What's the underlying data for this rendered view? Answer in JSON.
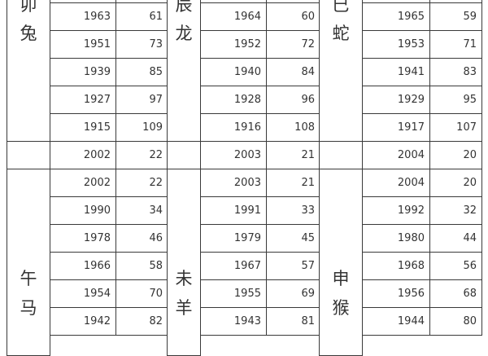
{
  "top": [
    {
      "labels": [
        "卯",
        "兔"
      ],
      "rows": [
        [
          "1963",
          "61"
        ],
        [
          "1951",
          "73"
        ],
        [
          "1939",
          "85"
        ],
        [
          "1927",
          "97"
        ],
        [
          "1915",
          "109"
        ]
      ]
    },
    {
      "labels": [
        "辰",
        "龙"
      ],
      "rows": [
        [
          "1964",
          "60"
        ],
        [
          "1952",
          "72"
        ],
        [
          "1940",
          "84"
        ],
        [
          "1928",
          "96"
        ],
        [
          "1916",
          "108"
        ]
      ]
    },
    {
      "labels": [
        "巳",
        "蛇"
      ],
      "rows": [
        [
          "1965",
          "59"
        ],
        [
          "1953",
          "71"
        ],
        [
          "1941",
          "83"
        ],
        [
          "1929",
          "95"
        ],
        [
          "1917",
          "107"
        ]
      ]
    }
  ],
  "middle": [
    [
      "2002",
      "22"
    ],
    [
      "2003",
      "21"
    ],
    [
      "2004",
      "20"
    ]
  ],
  "bottom": [
    {
      "labels": [
        "午",
        "马"
      ],
      "rows": [
        [
          "2002",
          "22"
        ],
        [
          "1990",
          "34"
        ],
        [
          "1978",
          "46"
        ],
        [
          "1966",
          "58"
        ],
        [
          "1954",
          "70"
        ],
        [
          "1942",
          "82"
        ]
      ]
    },
    {
      "labels": [
        "未",
        "羊"
      ],
      "rows": [
        [
          "2003",
          "21"
        ],
        [
          "1991",
          "33"
        ],
        [
          "1979",
          "45"
        ],
        [
          "1967",
          "57"
        ],
        [
          "1955",
          "69"
        ],
        [
          "1943",
          "81"
        ]
      ]
    },
    {
      "labels": [
        "申",
        "猴"
      ],
      "rows": [
        [
          "2004",
          "20"
        ],
        [
          "1992",
          "32"
        ],
        [
          "1980",
          "44"
        ],
        [
          "1968",
          "56"
        ],
        [
          "1956",
          "68"
        ],
        [
          "1944",
          "80"
        ]
      ]
    }
  ]
}
